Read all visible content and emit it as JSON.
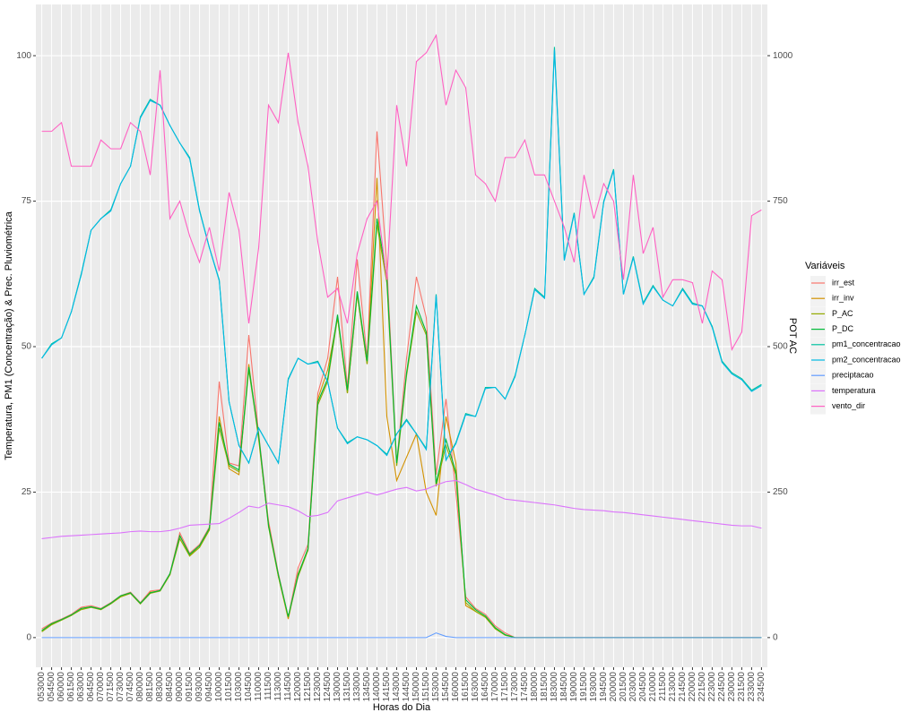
{
  "chart_data": {
    "type": "line",
    "y_label": "Temperatura, PM1 (Concentração) & Prec. Pluviométrica",
    "y2_label": "POT AC",
    "x_label": "Horas do Dia",
    "legend_title": "Variáveis",
    "legend_position": "right",
    "grid": true,
    "ylim": [
      -5.1,
      108.8
    ],
    "yticks": [
      0,
      25,
      50,
      75,
      100
    ],
    "y2lim": [
      -51,
      1088
    ],
    "y2ticks": [
      0,
      250,
      500,
      750,
      1000
    ],
    "categories": [
      "053000",
      "054500",
      "060000",
      "061500",
      "063000",
      "064500",
      "070000",
      "071500",
      "073000",
      "074500",
      "080000",
      "081500",
      "083000",
      "084500",
      "090000",
      "091500",
      "093000",
      "094500",
      "100000",
      "101500",
      "103000",
      "104500",
      "110000",
      "111500",
      "113000",
      "114500",
      "120000",
      "121500",
      "123000",
      "124500",
      "130000",
      "131500",
      "133000",
      "134500",
      "140000",
      "141500",
      "143000",
      "144500",
      "150000",
      "151500",
      "153000",
      "154500",
      "160000",
      "161500",
      "163000",
      "164500",
      "170000",
      "171500",
      "173000",
      "174500",
      "180000",
      "181500",
      "183000",
      "184500",
      "190000",
      "191500",
      "193000",
      "194500",
      "200000",
      "201500",
      "203000",
      "204500",
      "210000",
      "211500",
      "213000",
      "214500",
      "220000",
      "221500",
      "223000",
      "224500",
      "230000",
      "231500",
      "233000",
      "234500"
    ],
    "series": [
      {
        "name": "irr_est",
        "color": "#F8766D",
        "values": [
          1.5,
          2.5,
          3.2,
          4,
          5.2,
          5.5,
          5,
          6,
          7.2,
          7.8,
          6,
          8,
          8.2,
          11,
          18,
          14.5,
          16,
          19,
          44,
          30,
          29.5,
          52,
          35,
          20,
          11,
          3.5,
          12,
          16,
          42,
          48,
          62,
          43,
          65,
          48,
          87,
          64,
          30,
          48,
          62,
          55,
          28,
          41,
          25,
          7,
          5,
          4,
          2,
          0.8,
          0,
          0,
          0,
          0,
          0,
          0,
          0,
          0,
          0,
          0,
          0,
          0,
          0,
          0,
          0,
          0,
          0,
          0,
          0,
          0,
          0,
          0,
          0,
          0,
          0,
          0
        ]
      },
      {
        "name": "irr_inv",
        "color": "#D39200",
        "values": [
          1.2,
          2.3,
          3,
          3.8,
          5,
          5.3,
          4.8,
          5.8,
          7,
          7.6,
          5.8,
          7.8,
          8,
          10.8,
          17.5,
          14.2,
          15.5,
          18.5,
          38,
          29,
          28,
          47,
          34,
          19.5,
          10.5,
          3.2,
          11,
          15,
          41,
          46,
          55,
          42,
          59,
          47,
          79,
          38,
          27,
          31,
          35,
          25,
          21,
          38,
          30,
          5.5,
          4.5,
          3.5,
          1.5,
          0.5,
          0,
          0,
          0,
          0,
          0,
          0,
          0,
          0,
          0,
          0,
          0,
          0,
          0,
          0,
          0,
          0,
          0,
          0,
          0,
          0,
          0,
          0,
          0,
          0,
          0,
          0
        ]
      },
      {
        "name": "P_AC",
        "color": "#93AA00",
        "values": [
          1,
          2.2,
          3,
          3.8,
          4.8,
          5.2,
          4.8,
          5.8,
          7,
          7.6,
          5.8,
          7.6,
          8,
          10.8,
          17,
          14,
          15.5,
          18.5,
          36,
          29.5,
          28.5,
          46,
          34.5,
          19,
          10.5,
          3.5,
          10.5,
          15,
          40,
          44,
          55,
          42,
          59,
          47,
          71,
          61,
          29.5,
          45,
          56,
          52,
          26,
          33,
          28,
          6,
          4.5,
          3.5,
          1.5,
          0.4,
          0,
          0,
          0,
          0,
          0,
          0,
          0,
          0,
          0,
          0,
          0,
          0,
          0,
          0,
          0,
          0,
          0,
          0,
          0,
          0,
          0,
          0,
          0,
          0,
          0,
          0
        ]
      },
      {
        "name": "P_DC",
        "color": "#00BA38",
        "values": [
          1.2,
          2.4,
          3.1,
          3.9,
          5,
          5.3,
          4.9,
          5.9,
          7.2,
          7.7,
          5.9,
          7.7,
          8.1,
          11,
          17.5,
          14.3,
          15.8,
          18.8,
          37,
          29.8,
          28.8,
          46.5,
          34.8,
          19.3,
          10.8,
          3.6,
          10.8,
          15.3,
          40.5,
          44.5,
          55.5,
          42.5,
          59.5,
          47.5,
          72,
          62,
          30,
          45.5,
          57,
          52.5,
          26.5,
          34,
          28.5,
          6.5,
          4.8,
          3.7,
          1.7,
          0.5,
          0,
          0,
          0,
          0,
          0,
          0,
          0,
          0,
          0,
          0,
          0,
          0,
          0,
          0,
          0,
          0,
          0,
          0,
          0,
          0,
          0,
          0,
          0,
          0,
          0,
          0
        ]
      },
      {
        "name": "pm1_concentracao",
        "color": "#00C19F",
        "values": [
          48,
          50.5,
          51.5,
          56,
          62.5,
          70,
          72,
          73.5,
          78,
          81,
          89.5,
          92.5,
          91.5,
          88,
          85,
          82.5,
          73.5,
          67,
          61.5,
          40.5,
          33,
          30,
          36,
          33,
          30,
          44.5,
          48,
          47,
          47.5,
          44,
          36,
          33.5,
          34.5,
          34,
          33,
          31.5,
          35,
          37.5,
          35,
          32.5,
          59,
          30.5,
          33.5,
          38.5,
          38,
          43,
          43,
          41,
          45,
          52,
          60,
          58.5,
          101.5,
          65,
          73,
          59,
          62,
          75,
          80.5,
          59,
          65.5,
          57.5,
          60.5,
          58,
          57,
          60,
          57.5,
          57,
          53.5,
          47.5,
          45.5,
          44.5,
          42.5,
          43.5
        ]
      },
      {
        "name": "pm2_concentracao",
        "color": "#00B9E3",
        "values": [
          48,
          50.3,
          51.5,
          56,
          62.3,
          70,
          72,
          73.3,
          78,
          81,
          89.3,
          92.3,
          91.5,
          88,
          85,
          82.3,
          73.3,
          67,
          61.3,
          40.5,
          33,
          30,
          36,
          33,
          30,
          44.3,
          48,
          47,
          47.3,
          44,
          36,
          33.3,
          34.5,
          34,
          33,
          31.3,
          35,
          37.3,
          35,
          32.3,
          58.8,
          30.5,
          33.3,
          38.3,
          38,
          42.8,
          43,
          41,
          44.8,
          52,
          59.8,
          58.3,
          101,
          64.8,
          72.8,
          59,
          61.8,
          74.8,
          80.3,
          59,
          65.3,
          57.3,
          60.3,
          58,
          57,
          59.8,
          57.3,
          57,
          53.3,
          47.3,
          45.3,
          44.3,
          42.3,
          43.3
        ]
      },
      {
        "name": "preciptacao",
        "color": "#619CFF",
        "values": [
          0,
          0,
          0,
          0,
          0,
          0,
          0,
          0,
          0,
          0,
          0,
          0,
          0,
          0,
          0,
          0,
          0,
          0,
          0,
          0,
          0,
          0,
          0,
          0,
          0,
          0,
          0,
          0,
          0,
          0,
          0,
          0,
          0,
          0,
          0,
          0,
          0,
          0,
          0,
          0,
          0.8,
          0.2,
          0,
          0,
          0,
          0,
          0,
          0,
          0,
          0,
          0,
          0,
          0,
          0,
          0,
          0,
          0,
          0,
          0,
          0,
          0,
          0,
          0,
          0,
          0,
          0,
          0,
          0,
          0,
          0,
          0,
          0,
          0,
          0
        ]
      },
      {
        "name": "temperatura",
        "color": "#DB72FB",
        "values": [
          17,
          17.2,
          17.4,
          17.5,
          17.6,
          17.7,
          17.8,
          17.9,
          18,
          18.2,
          18.3,
          18.2,
          18.2,
          18.4,
          18.8,
          19.3,
          19.4,
          19.5,
          19.6,
          20.5,
          21.5,
          22.6,
          22.3,
          23.1,
          22.8,
          22.5,
          21.8,
          20.8,
          21,
          21.5,
          23.5,
          24,
          24.5,
          25,
          24.5,
          25,
          25.5,
          25.8,
          25.2,
          25.5,
          26.2,
          26.8,
          27,
          26.3,
          25.5,
          25,
          24.5,
          23.8,
          23.6,
          23.4,
          23.2,
          23,
          22.8,
          22.5,
          22.2,
          22,
          21.9,
          21.8,
          21.6,
          21.5,
          21.3,
          21.1,
          20.9,
          20.7,
          20.5,
          20.3,
          20.1,
          19.9,
          19.7,
          19.5,
          19.3,
          19.2,
          19.2,
          18.8
        ]
      },
      {
        "name": "vento_dir",
        "color": "#FF61C3",
        "values": [
          87,
          87,
          88.5,
          81,
          81,
          81,
          85.5,
          84,
          84,
          88.5,
          87,
          79.5,
          97.5,
          72,
          75,
          69,
          64.5,
          70.5,
          63,
          76.5,
          70,
          54,
          67,
          91.5,
          88.5,
          100.5,
          88.5,
          81,
          68,
          58.5,
          60,
          54,
          66,
          72,
          75,
          61.5,
          91.5,
          81,
          99,
          100.5,
          103.5,
          91.5,
          97.5,
          94.5,
          79.5,
          78,
          75,
          82.5,
          82.5,
          85.5,
          79.5,
          79.5,
          75,
          70.5,
          64.5,
          79.5,
          72,
          78,
          75,
          61.5,
          79.5,
          66,
          70.5,
          58.5,
          61.5,
          61.5,
          61,
          54,
          63,
          61.5,
          49.5,
          52.5,
          72.5,
          73.5
        ]
      }
    ]
  }
}
